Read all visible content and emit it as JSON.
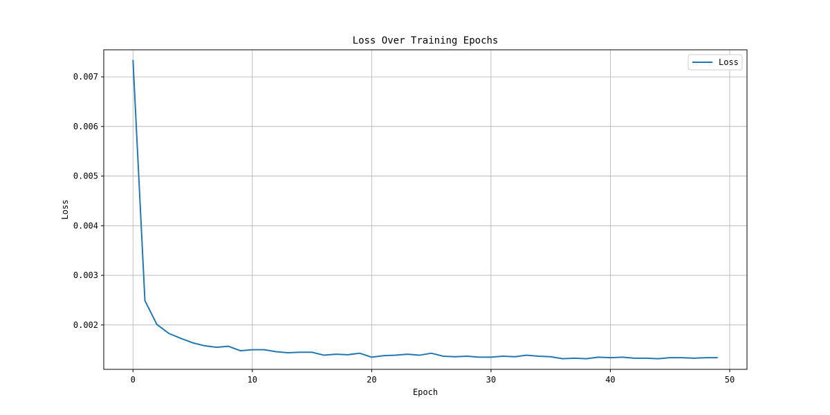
{
  "chart_data": {
    "type": "line",
    "title": "Loss Over Training Epochs",
    "xlabel": "Epoch",
    "ylabel": "Loss",
    "xlim": [
      -2.45,
      51.45
    ],
    "ylim": [
      0.001105,
      0.007545
    ],
    "xticks": [
      0,
      10,
      20,
      30,
      40,
      50
    ],
    "yticks": [
      0.002,
      0.003,
      0.004,
      0.005,
      0.006,
      0.007
    ],
    "ytick_labels": [
      "0.002",
      "0.003",
      "0.004",
      "0.005",
      "0.006",
      "0.007"
    ],
    "grid": true,
    "legend_position": "top-right",
    "series": [
      {
        "name": "Loss",
        "color": "#1f77b4",
        "x": [
          0,
          1,
          2,
          3,
          4,
          5,
          6,
          7,
          8,
          9,
          10,
          11,
          12,
          13,
          14,
          15,
          16,
          17,
          18,
          19,
          20,
          21,
          22,
          23,
          24,
          25,
          26,
          27,
          28,
          29,
          30,
          31,
          32,
          33,
          34,
          35,
          36,
          37,
          38,
          39,
          40,
          41,
          42,
          43,
          44,
          45,
          46,
          47,
          48,
          49
        ],
        "values": [
          0.00734,
          0.00249,
          0.00201,
          0.00183,
          0.00173,
          0.00164,
          0.00158,
          0.00155,
          0.00157,
          0.00148,
          0.0015,
          0.0015,
          0.00146,
          0.00144,
          0.00145,
          0.00145,
          0.00139,
          0.00141,
          0.0014,
          0.00143,
          0.00135,
          0.00138,
          0.00139,
          0.00141,
          0.00139,
          0.00143,
          0.00137,
          0.00136,
          0.00137,
          0.00135,
          0.00135,
          0.00137,
          0.00136,
          0.00139,
          0.00137,
          0.00136,
          0.00132,
          0.00133,
          0.00132,
          0.00135,
          0.00134,
          0.00135,
          0.00133,
          0.00133,
          0.00132,
          0.00134,
          0.00134,
          0.00133,
          0.00134,
          0.00134
        ]
      }
    ]
  }
}
